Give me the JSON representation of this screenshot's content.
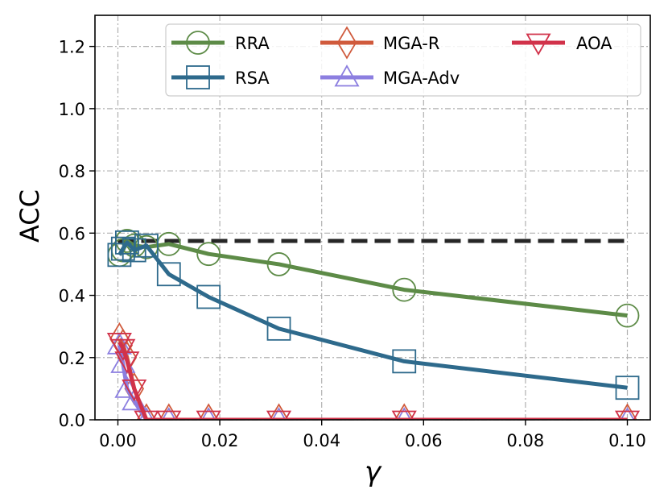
{
  "chart_data": {
    "type": "line",
    "title": "",
    "xlabel": "γ",
    "ylabel": "ACC",
    "xlim": [
      -0.0045,
      0.1045
    ],
    "ylim": [
      0.0,
      1.3
    ],
    "xticks": [
      0.0,
      0.02,
      0.04,
      0.06,
      0.08,
      0.1
    ],
    "xtick_labels": [
      "0.00",
      "0.02",
      "0.04",
      "0.06",
      "0.08",
      "0.10"
    ],
    "yticks": [
      0.0,
      0.2,
      0.4,
      0.6,
      0.8,
      1.0,
      1.2
    ],
    "ytick_labels": [
      "0.0",
      "0.2",
      "0.4",
      "0.6",
      "0.8",
      "1.0",
      "1.2"
    ],
    "grid": true,
    "legend_position": "top-center",
    "reference_line": {
      "y": 0.575,
      "x_range": [
        0.0,
        0.1
      ],
      "style": "dashed",
      "color": "#262626"
    },
    "series": [
      {
        "name": "RRA",
        "color": "#5d8b47",
        "marker": "circle",
        "x": [
          0.0003,
          0.001,
          0.0018,
          0.0032,
          0.0056,
          0.01,
          0.0178,
          0.0316,
          0.0562,
          0.1
        ],
        "y": [
          0.53,
          0.545,
          0.575,
          0.56,
          0.555,
          0.565,
          0.533,
          0.5,
          0.418,
          0.335
        ]
      },
      {
        "name": "RSA",
        "color": "#2e6a8c",
        "marker": "square",
        "x": [
          0.0003,
          0.001,
          0.0018,
          0.0032,
          0.0056,
          0.01,
          0.0178,
          0.0316,
          0.0562,
          0.1
        ],
        "y": [
          0.53,
          0.55,
          0.57,
          0.545,
          0.56,
          0.468,
          0.395,
          0.293,
          0.188,
          0.103
        ]
      },
      {
        "name": "MGA-R",
        "color": "#d05a3c",
        "marker": "diamond",
        "x": [
          0.0003,
          0.001,
          0.0018,
          0.0032,
          0.0056,
          0.01,
          0.0178,
          0.0316,
          0.0562,
          0.1
        ],
        "y": [
          0.26,
          0.24,
          0.2,
          0.1,
          0.0,
          0.0,
          0.0,
          0.0,
          0.0,
          0.0
        ]
      },
      {
        "name": "MGA-Adv",
        "color": "#8c7fe0",
        "marker": "triangle-up",
        "x": [
          0.0003,
          0.001,
          0.0018,
          0.0032,
          0.0056,
          0.01,
          0.0178,
          0.0316,
          0.0562,
          0.1
        ],
        "y": [
          0.24,
          0.18,
          0.1,
          0.06,
          0.0,
          0.0,
          0.0,
          0.0,
          0.0,
          0.0
        ]
      },
      {
        "name": "AOA",
        "color": "#d1324a",
        "marker": "triangle-down",
        "x": [
          0.0003,
          0.001,
          0.0018,
          0.0032,
          0.0056,
          0.01,
          0.0178,
          0.0316,
          0.0562,
          0.1
        ],
        "y": [
          0.25,
          0.23,
          0.19,
          0.1,
          0.0,
          0.0,
          0.0,
          0.0,
          0.0,
          0.0
        ]
      }
    ]
  }
}
